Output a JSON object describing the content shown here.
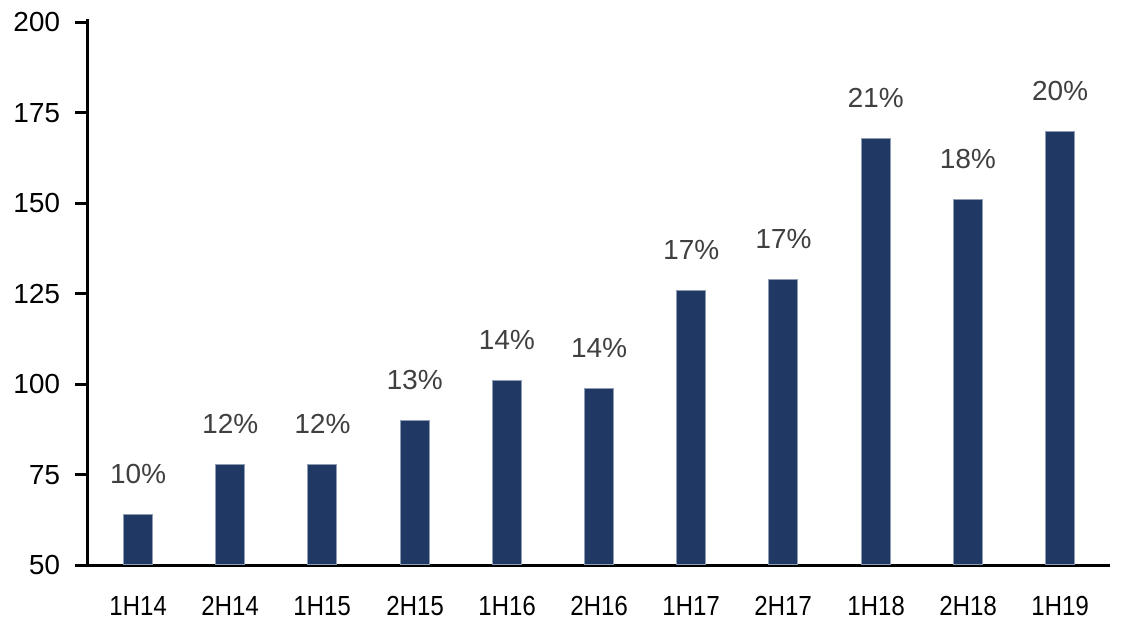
{
  "chart_data": {
    "type": "bar",
    "title": "",
    "xlabel": "",
    "ylabel": "",
    "categories": [
      "1H14",
      "2H14",
      "1H15",
      "2H15",
      "1H16",
      "2H16",
      "1H17",
      "2H17",
      "1H18",
      "2H18",
      "1H19"
    ],
    "values": [
      64,
      78,
      78,
      90,
      101,
      99,
      126,
      129,
      168,
      151,
      170
    ],
    "bar_labels": [
      "10%",
      "12%",
      "12%",
      "13%",
      "14%",
      "14%",
      "17%",
      "17%",
      "21%",
      "18%",
      "20%"
    ],
    "ylim": [
      50,
      200
    ],
    "yticks": [
      50,
      75,
      100,
      125,
      150,
      175,
      200
    ],
    "grid": false,
    "legend": null,
    "colors": {
      "bar_fill": "#1F3864",
      "bar_border": "#8E9DB3",
      "bar_label_text": "#404040",
      "axis": "#000000",
      "tick_label_text": "#000000",
      "background": "#FFFFFF"
    }
  }
}
